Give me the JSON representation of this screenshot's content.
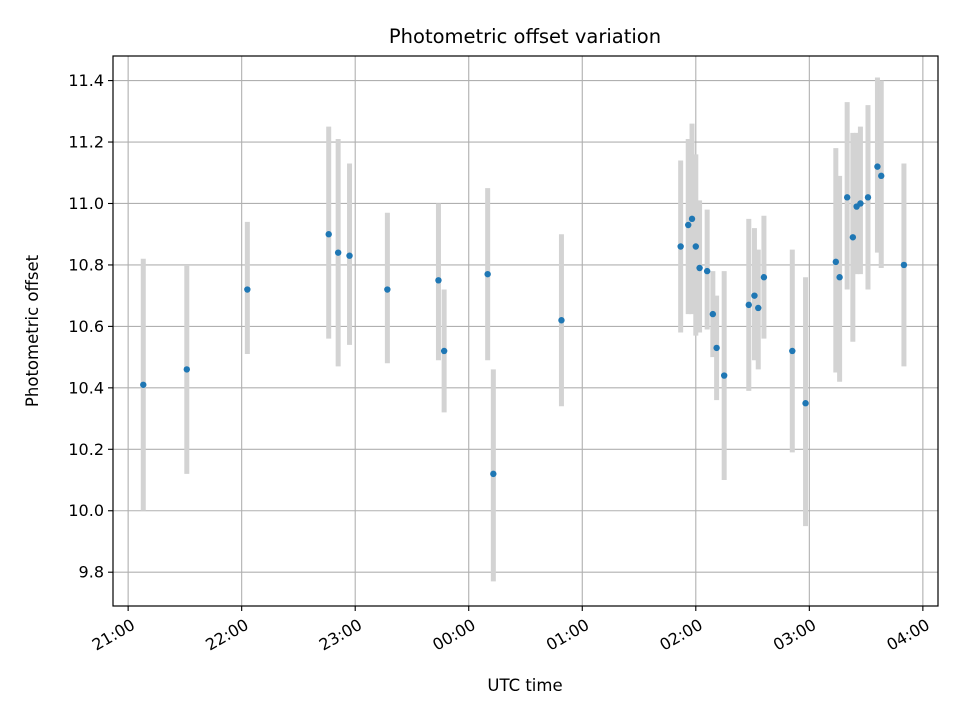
{
  "chart_data": {
    "type": "scatter",
    "title": "Photometric offset variation",
    "xlabel": "UTC time",
    "ylabel": "Photometric offset",
    "x_tick_labels": [
      "21:00",
      "22:00",
      "23:00",
      "00:00",
      "01:00",
      "02:00",
      "03:00",
      "04:00"
    ],
    "y_tick_labels": [
      "9.8",
      "10.0",
      "10.2",
      "10.4",
      "10.6",
      "10.8",
      "11.0",
      "11.2",
      "11.4"
    ],
    "y_ticks": [
      9.8,
      10.0,
      10.2,
      10.4,
      10.6,
      10.8,
      11.0,
      11.2,
      11.4
    ],
    "xlim": [
      "20:52",
      "04:08"
    ],
    "ylim": [
      9.69,
      11.48
    ],
    "grid": true,
    "marker_color": "#1f77b4",
    "errorbar_color": "#d3d3d3",
    "points": [
      {
        "t": "21:08",
        "y": 10.41,
        "lo": 10.0,
        "hi": 10.82
      },
      {
        "t": "21:31",
        "y": 10.46,
        "lo": 10.12,
        "hi": 10.8
      },
      {
        "t": "22:03",
        "y": 10.72,
        "lo": 10.51,
        "hi": 10.94
      },
      {
        "t": "22:46",
        "y": 10.9,
        "lo": 10.56,
        "hi": 11.25
      },
      {
        "t": "22:51",
        "y": 10.84,
        "lo": 10.47,
        "hi": 11.21
      },
      {
        "t": "22:57",
        "y": 10.83,
        "lo": 10.54,
        "hi": 11.13
      },
      {
        "t": "23:17",
        "y": 10.72,
        "lo": 10.48,
        "hi": 10.97
      },
      {
        "t": "23:44",
        "y": 10.75,
        "lo": 10.49,
        "hi": 11.0
      },
      {
        "t": "23:47",
        "y": 10.52,
        "lo": 10.32,
        "hi": 10.72
      },
      {
        "t": "00:10",
        "y": 10.77,
        "lo": 10.49,
        "hi": 11.05
      },
      {
        "t": "00:13",
        "y": 10.12,
        "lo": 9.77,
        "hi": 10.46
      },
      {
        "t": "00:49",
        "y": 10.62,
        "lo": 10.34,
        "hi": 10.9
      },
      {
        "t": "01:52",
        "y": 10.86,
        "lo": 10.58,
        "hi": 11.14
      },
      {
        "t": "01:56",
        "y": 10.93,
        "lo": 10.64,
        "hi": 11.21
      },
      {
        "t": "01:58",
        "y": 10.95,
        "lo": 10.64,
        "hi": 11.26
      },
      {
        "t": "02:00",
        "y": 10.86,
        "lo": 10.57,
        "hi": 11.16
      },
      {
        "t": "02:02",
        "y": 10.79,
        "lo": 10.58,
        "hi": 11.01
      },
      {
        "t": "02:06",
        "y": 10.78,
        "lo": 10.59,
        "hi": 10.98
      },
      {
        "t": "02:09",
        "y": 10.64,
        "lo": 10.5,
        "hi": 10.78
      },
      {
        "t": "02:11",
        "y": 10.53,
        "lo": 10.36,
        "hi": 10.7
      },
      {
        "t": "02:15",
        "y": 10.44,
        "lo": 10.1,
        "hi": 10.78
      },
      {
        "t": "02:28",
        "y": 10.67,
        "lo": 10.39,
        "hi": 10.95
      },
      {
        "t": "02:31",
        "y": 10.7,
        "lo": 10.49,
        "hi": 10.92
      },
      {
        "t": "02:33",
        "y": 10.66,
        "lo": 10.46,
        "hi": 10.85
      },
      {
        "t": "02:36",
        "y": 10.76,
        "lo": 10.56,
        "hi": 10.96
      },
      {
        "t": "02:51",
        "y": 10.52,
        "lo": 10.19,
        "hi": 10.85
      },
      {
        "t": "02:58",
        "y": 10.35,
        "lo": 9.95,
        "hi": 10.76
      },
      {
        "t": "03:14",
        "y": 10.81,
        "lo": 10.45,
        "hi": 11.18
      },
      {
        "t": "03:16",
        "y": 10.76,
        "lo": 10.42,
        "hi": 11.09
      },
      {
        "t": "03:20",
        "y": 11.02,
        "lo": 10.72,
        "hi": 11.33
      },
      {
        "t": "03:23",
        "y": 10.89,
        "lo": 10.55,
        "hi": 11.23
      },
      {
        "t": "03:25",
        "y": 10.99,
        "lo": 10.77,
        "hi": 11.23
      },
      {
        "t": "03:27",
        "y": 11.0,
        "lo": 10.77,
        "hi": 11.25
      },
      {
        "t": "03:31",
        "y": 11.02,
        "lo": 10.72,
        "hi": 11.32
      },
      {
        "t": "03:36",
        "y": 11.12,
        "lo": 10.84,
        "hi": 11.41
      },
      {
        "t": "03:38",
        "y": 11.09,
        "lo": 10.79,
        "hi": 11.4
      },
      {
        "t": "03:50",
        "y": 10.8,
        "lo": 10.47,
        "hi": 11.13
      }
    ]
  }
}
